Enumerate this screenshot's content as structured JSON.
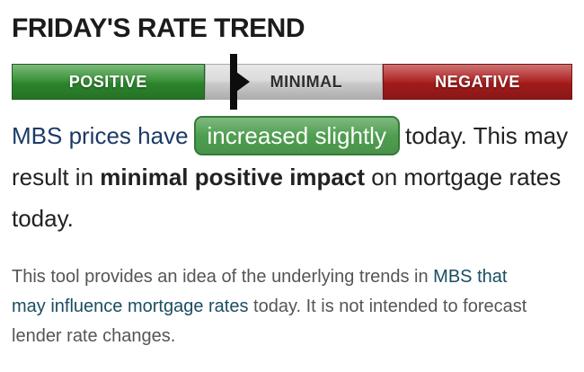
{
  "header": {
    "title": "FRIDAY'S RATE TREND"
  },
  "trend_bar": {
    "segments": [
      {
        "label": "POSITIVE"
      },
      {
        "label": "MINIMAL"
      },
      {
        "label": "NEGATIVE"
      }
    ],
    "marker_position_pct": 39
  },
  "statement": {
    "link_text": "MBS prices have",
    "badge_label": "increased slightly",
    "mid_text": "today. This may result in ",
    "bold_text": "minimal positive impact",
    "end_text": " on mortgage rates today."
  },
  "disclaimer": {
    "text_before_link": "This tool provides an idea of the underlying trends in ",
    "link_text": "MBS that may influence mortgage rates",
    "text_after_link": " today. It is not intended to forecast lender rate changes."
  },
  "colors": {
    "bar-green": "#2f8e2f",
    "bar-gray": "#d9d9d9",
    "bar-red": "#ad1d1d",
    "badge-green": "#4f9e50",
    "badge-border": "#357a36",
    "statement-link": "#1c3a66",
    "disclaimer-link": "#1a4d61",
    "title-color": "#1b1b1b",
    "body-color": "#222222",
    "muted-color": "#555555",
    "marker-color": "#0d0d0d"
  }
}
